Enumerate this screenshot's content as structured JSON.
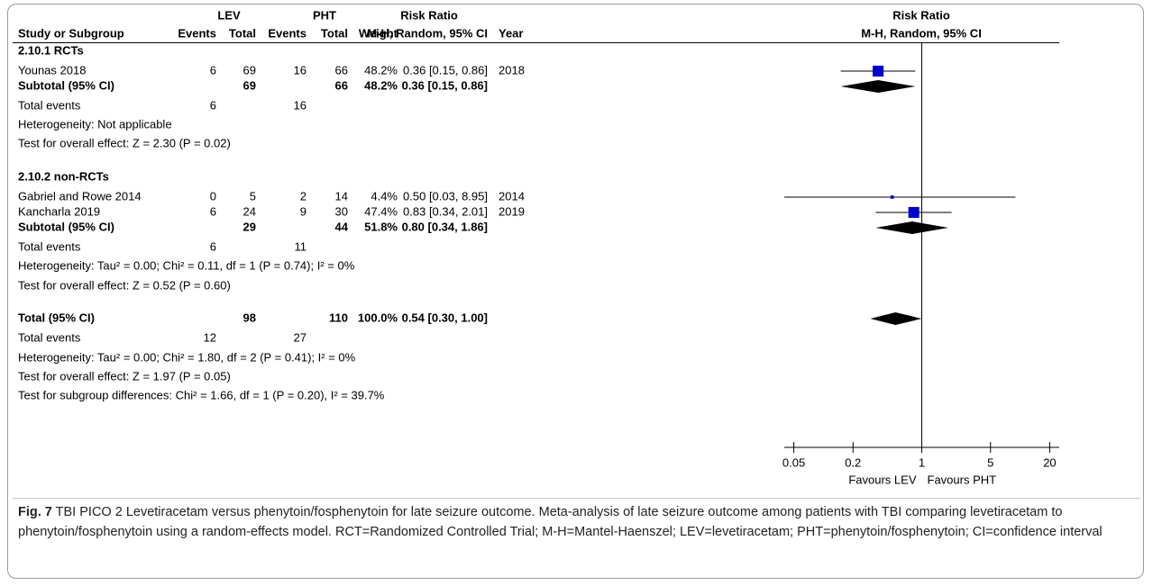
{
  "header": {
    "group1": "LEV",
    "group2": "PHT",
    "effect": "Risk Ratio",
    "columns": [
      "Study or Subgroup",
      "Events",
      "Total",
      "Events",
      "Total",
      "Weight",
      "M-H, Random, 95% CI",
      "Year"
    ],
    "plot_title": "Risk Ratio",
    "plot_subtitle": "M-H, Random, 95% CI"
  },
  "rows": [
    {
      "kind": "heading",
      "label": "2.10.1 RCTs"
    },
    {
      "kind": "study",
      "label": "Younas 2018",
      "e1": 6,
      "n1": 69,
      "e2": 16,
      "n2": 66,
      "weight": 48.2,
      "weight_label": "48.2%",
      "effect_label": "0.36 [0.15, 0.86]",
      "rr": 0.36,
      "lo": 0.15,
      "hi": 0.86,
      "year": 2018
    },
    {
      "kind": "subtotal",
      "label": "Subtotal (95% CI)",
      "n1": 69,
      "n2": 66,
      "weight_label": "48.2%",
      "effect_label": "0.36 [0.15, 0.86]",
      "rr": 0.36,
      "lo": 0.15,
      "hi": 0.86
    },
    {
      "kind": "events",
      "label": "Total events",
      "e1": 6,
      "e2": 16
    },
    {
      "kind": "note",
      "label": "Heterogeneity: Not applicable"
    },
    {
      "kind": "note",
      "label": "Test for overall effect: Z = 2.30 (P = 0.02)"
    },
    {
      "kind": "heading",
      "label": "2.10.2 non-RCTs"
    },
    {
      "kind": "study",
      "label": "Gabriel and Rowe 2014",
      "e1": 0,
      "n1": 5,
      "e2": 2,
      "n2": 14,
      "weight": 4.4,
      "weight_label": "4.4%",
      "effect_label": "0.50 [0.03, 8.95]",
      "rr": 0.5,
      "lo": 0.03,
      "hi": 8.95,
      "year": 2014
    },
    {
      "kind": "study",
      "label": "Kancharla 2019",
      "e1": 6,
      "n1": 24,
      "e2": 9,
      "n2": 30,
      "weight": 47.4,
      "weight_label": "47.4%",
      "effect_label": "0.83 [0.34, 2.01]",
      "rr": 0.83,
      "lo": 0.34,
      "hi": 2.01,
      "year": 2019
    },
    {
      "kind": "subtotal",
      "label": "Subtotal (95% CI)",
      "n1": 29,
      "n2": 44,
      "weight_label": "51.8%",
      "effect_label": "0.80 [0.34, 1.86]",
      "rr": 0.8,
      "lo": 0.34,
      "hi": 1.86
    },
    {
      "kind": "events",
      "label": "Total events",
      "e1": 6,
      "e2": 11
    },
    {
      "kind": "note",
      "label": "Heterogeneity: Tau² = 0.00; Chi² = 0.11, df = 1 (P = 0.74); I² = 0%"
    },
    {
      "kind": "note",
      "label": "Test for overall effect: Z = 0.52 (P = 0.60)"
    },
    {
      "kind": "subtotal",
      "label": "Total (95% CI)",
      "n1": 98,
      "n2": 110,
      "weight_label": "100.0%",
      "effect_label": "0.54 [0.30, 1.00]",
      "rr": 0.54,
      "lo": 0.3,
      "hi": 1.0
    },
    {
      "kind": "events",
      "label": "Total events",
      "e1": 12,
      "e2": 27
    },
    {
      "kind": "note",
      "label": "Heterogeneity: Tau² = 0.00; Chi² = 1.80, df = 2 (P = 0.41); I² = 0%"
    },
    {
      "kind": "note",
      "label": "Test for overall effect: Z = 1.97 (P = 0.05)"
    },
    {
      "kind": "note",
      "label": "Test for subgroup differences: Chi² = 1.66, df = 1 (P = 0.20), I² = 39.7%"
    }
  ],
  "plot": {
    "log": true,
    "xlim": [
      0.04,
      25
    ],
    "xticks": [
      0.05,
      0.2,
      1,
      5,
      20
    ],
    "left_label": "Favours LEV",
    "right_label": "Favours PHT",
    "color": "#0000cc"
  },
  "caption": {
    "label": "Fig. 7",
    "text": "TBI PICO 2 Levetiracetam versus phenytoin/fosphenytoin for late seizure outcome. Meta-analysis of late seizure outcome among patients with TBI comparing levetiracetam to phenytoin/fosphenytoin using a random-effects model.  RCT=Randomized Controlled Trial; M-H=Mantel-Haenszel; LEV=levetiracetam; PHT=phenytoin/fosphenytoin; CI=confidence interval"
  }
}
